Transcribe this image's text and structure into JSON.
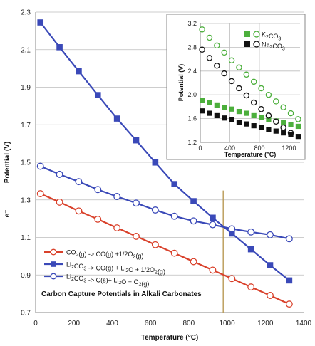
{
  "chart_data": [
    {
      "type": "line",
      "title": "Carbon Capture Potentials in Alkali Carbonates",
      "xlabel": "Temperature (°C)",
      "ylabel": "Potential (V)",
      "ylabel_extra": "e⁻",
      "xlim": [
        0,
        1400
      ],
      "ylim": [
        0.7,
        2.3
      ],
      "x_ticks": [
        "0",
        "200",
        "400",
        "600",
        "800",
        "1000",
        "1200",
        "1400"
      ],
      "y_ticks": [
        "0.7",
        "0.9",
        "1.1",
        "1.3",
        "1.5",
        "1.7",
        "1.9",
        "2.1",
        "2.3"
      ],
      "grid": "horizontal",
      "legend_position": "bottom-left",
      "colors": {
        "red": "#d9412b",
        "blue": "#3a49b8",
        "marker_line": "#b99a55"
      },
      "vertical_marker_x": 980,
      "series": [
        {
          "name": "CO2(g) -> CO(g) +1/2O2(g)",
          "marker": "open-circle",
          "color": "#d9412b",
          "x": [
            25,
            125,
            225,
            325,
            425,
            525,
            625,
            725,
            825,
            925,
            1025,
            1125,
            1225,
            1325
          ],
          "y": [
            1.333,
            1.288,
            1.241,
            1.197,
            1.151,
            1.106,
            1.061,
            1.016,
            0.971,
            0.926,
            0.881,
            0.836,
            0.791,
            0.745
          ]
        },
        {
          "name": "Li2CO3 -> CO(g) + Li2O + 1/2O2(g)",
          "marker": "filled-square",
          "color": "#3a49b8",
          "x": [
            25,
            125,
            225,
            325,
            425,
            525,
            625,
            725,
            825,
            925,
            1025,
            1125,
            1225,
            1325
          ],
          "y": [
            2.245,
            2.113,
            1.985,
            1.858,
            1.733,
            1.617,
            1.499,
            1.384,
            1.293,
            1.205,
            1.121,
            1.037,
            0.952,
            0.871
          ]
        },
        {
          "name": "Li2CO3 -> C(s)+ Li2O + O2(g)",
          "marker": "open-circle",
          "color": "#3a49b8",
          "x": [
            25,
            125,
            225,
            325,
            425,
            525,
            625,
            725,
            825,
            925,
            1025,
            1125,
            1225,
            1325
          ],
          "y": [
            1.479,
            1.436,
            1.397,
            1.355,
            1.318,
            1.283,
            1.246,
            1.213,
            1.188,
            1.168,
            1.146,
            1.129,
            1.114,
            1.093
          ]
        }
      ]
    },
    {
      "type": "scatter",
      "title": "",
      "xlabel": "Temperature (°C)",
      "ylabel": "Potential (V)",
      "xlim": [
        0,
        1350
      ],
      "ylim": [
        1.2,
        3.2
      ],
      "x_ticks": [
        "0",
        "400",
        "800",
        "1200"
      ],
      "y_ticks": [
        "1.2",
        "1.6",
        "2.0",
        "2.4",
        "2.8",
        "3.2"
      ],
      "legend_position": "top-right",
      "legend_labels": [
        "K2CO3",
        "Na2CO3"
      ],
      "series": [
        {
          "name": "K2CO3",
          "marker": "open-circle",
          "color": "#4caf3c",
          "x": [
            25,
            125,
            225,
            325,
            425,
            525,
            625,
            725,
            825,
            925,
            1025,
            1125,
            1225,
            1325
          ],
          "y": [
            3.1,
            2.96,
            2.83,
            2.71,
            2.58,
            2.46,
            2.34,
            2.22,
            2.11,
            2.0,
            1.89,
            1.79,
            1.69,
            1.59
          ]
        },
        {
          "name": "K2CO3",
          "marker": "filled-square",
          "color": "#4caf3c",
          "x": [
            25,
            125,
            225,
            325,
            425,
            525,
            625,
            725,
            825,
            925,
            1025,
            1125,
            1225,
            1325
          ],
          "y": [
            1.91,
            1.87,
            1.83,
            1.79,
            1.76,
            1.72,
            1.69,
            1.65,
            1.62,
            1.59,
            1.56,
            1.53,
            1.5,
            1.47
          ]
        },
        {
          "name": "Na2CO3",
          "marker": "open-circle",
          "color": "#111111",
          "x": [
            25,
            125,
            225,
            325,
            425,
            525,
            625,
            725,
            825,
            925,
            1025,
            1125,
            1225
          ],
          "y": [
            2.76,
            2.62,
            2.49,
            2.36,
            2.23,
            2.11,
            1.99,
            1.87,
            1.76,
            1.65,
            1.55,
            1.45,
            1.36
          ]
        },
        {
          "name": "Na2CO3",
          "marker": "filled-square",
          "color": "#111111",
          "x": [
            25,
            125,
            225,
            325,
            425,
            525,
            625,
            725,
            825,
            925,
            1025,
            1125,
            1225,
            1325
          ],
          "y": [
            1.73,
            1.69,
            1.65,
            1.61,
            1.58,
            1.54,
            1.51,
            1.48,
            1.45,
            1.42,
            1.39,
            1.36,
            1.33,
            1.3
          ]
        }
      ]
    }
  ]
}
